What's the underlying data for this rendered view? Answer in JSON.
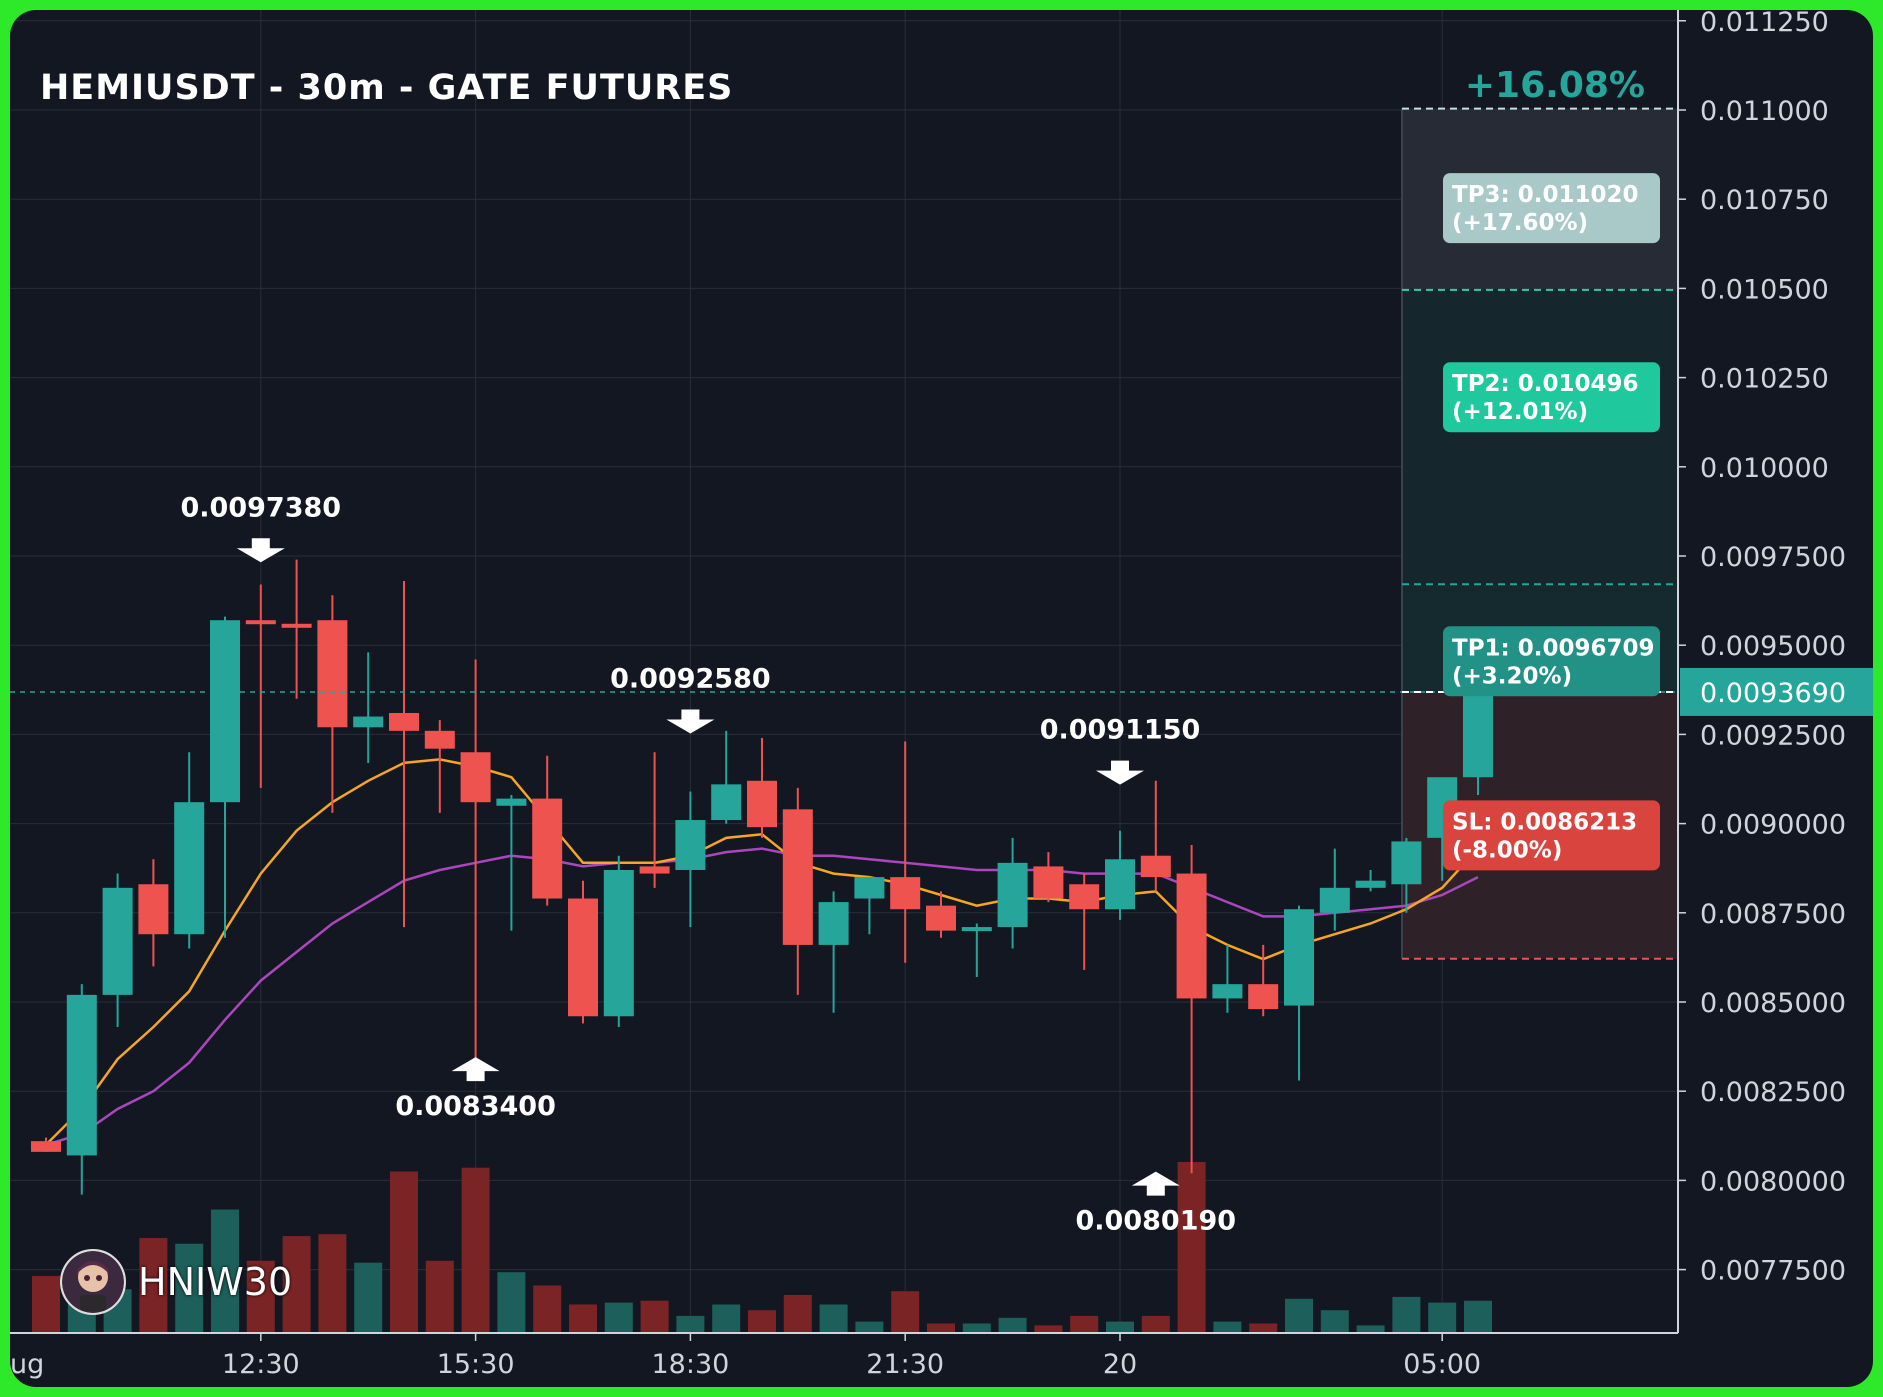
{
  "colors": {
    "background": "#131722",
    "frame": "#2ee82a",
    "grid": "#2a2e39",
    "up": "#26a69a",
    "down": "#ef5350",
    "vol_up": "#1d5f5a",
    "vol_down": "#7a2425",
    "ema_fast": "#f5a623",
    "ema_slow": "#ab47bc",
    "current_price_bg": "#26a69a",
    "tp3_box": "#a9c9c9",
    "tp2_box": "#1fc89d",
    "tp1_box": "#239286",
    "sl_box": "#d9443f",
    "profit_text": "#26a69a"
  },
  "chart_data": {
    "type": "candlestick",
    "title": "HEMIUSDT - 30m - GATE FUTURES",
    "watermark": "HNIW30",
    "price_axis": {
      "ticks": [
        "0.011250",
        "0.011000",
        "0.010750",
        "0.010500",
        "0.010250",
        "0.010000",
        "0.0097500",
        "0.0095000",
        "0.0092500",
        "0.0090000",
        "0.0087500",
        "0.0085000",
        "0.0082500",
        "0.0080000",
        "0.0077500"
      ],
      "tick_values": [
        0.01125,
        0.011,
        0.01075,
        0.0105,
        0.01025,
        0.01,
        0.00975,
        0.0095,
        0.00925,
        0.009,
        0.00875,
        0.0085,
        0.00825,
        0.008,
        0.00775
      ],
      "range": [
        0.00757,
        0.01128
      ]
    },
    "time_axis": {
      "labels": [
        {
          "label": "ug",
          "index": 0
        },
        {
          "label": "12:30",
          "index": 6
        },
        {
          "label": "15:30",
          "index": 12
        },
        {
          "label": "18:30",
          "index": 18
        },
        {
          "label": "21:30",
          "index": 24
        },
        {
          "label": "20",
          "index": 30
        },
        {
          "label": "05:00",
          "index": 39
        }
      ]
    },
    "candles": [
      {
        "o": 0.00811,
        "h": 0.00812,
        "l": 0.00808,
        "c": 0.00808,
        "v": 0.3
      },
      {
        "o": 0.00807,
        "h": 0.00855,
        "l": 0.00796,
        "c": 0.00852,
        "v": 0.22
      },
      {
        "o": 0.00852,
        "h": 0.00886,
        "l": 0.00843,
        "c": 0.00882,
        "v": 0.23
      },
      {
        "o": 0.00883,
        "h": 0.0089,
        "l": 0.0086,
        "c": 0.00869,
        "v": 0.5
      },
      {
        "o": 0.00869,
        "h": 0.0092,
        "l": 0.00865,
        "c": 0.00906,
        "v": 0.47
      },
      {
        "o": 0.00906,
        "h": 0.00958,
        "l": 0.00868,
        "c": 0.00957,
        "v": 0.65
      },
      {
        "o": 0.00957,
        "h": 0.00967,
        "l": 0.0091,
        "c": 0.00956,
        "v": 0.38
      },
      {
        "o": 0.00956,
        "h": 0.00974,
        "l": 0.00935,
        "c": 0.00955,
        "v": 0.51
      },
      {
        "o": 0.00957,
        "h": 0.00964,
        "l": 0.00903,
        "c": 0.00927,
        "v": 0.52
      },
      {
        "o": 0.00927,
        "h": 0.00948,
        "l": 0.00917,
        "c": 0.0093,
        "v": 0.37
      },
      {
        "o": 0.00931,
        "h": 0.00968,
        "l": 0.00871,
        "c": 0.00926,
        "v": 0.85
      },
      {
        "o": 0.00926,
        "h": 0.00929,
        "l": 0.00903,
        "c": 0.00921,
        "v": 0.38
      },
      {
        "o": 0.0092,
        "h": 0.00946,
        "l": 0.00834,
        "c": 0.00906,
        "v": 0.87
      },
      {
        "o": 0.00905,
        "h": 0.00908,
        "l": 0.0087,
        "c": 0.00907,
        "v": 0.32
      },
      {
        "o": 0.00907,
        "h": 0.00919,
        "l": 0.00877,
        "c": 0.00879,
        "v": 0.25
      },
      {
        "o": 0.00879,
        "h": 0.00884,
        "l": 0.00844,
        "c": 0.00846,
        "v": 0.15
      },
      {
        "o": 0.00846,
        "h": 0.00891,
        "l": 0.00843,
        "c": 0.00887,
        "v": 0.16
      },
      {
        "o": 0.00888,
        "h": 0.0092,
        "l": 0.00882,
        "c": 0.00886,
        "v": 0.17
      },
      {
        "o": 0.00887,
        "h": 0.00909,
        "l": 0.00871,
        "c": 0.00901,
        "v": 0.09
      },
      {
        "o": 0.00901,
        "h": 0.00926,
        "l": 0.009,
        "c": 0.00911,
        "v": 0.15
      },
      {
        "o": 0.00912,
        "h": 0.00924,
        "l": 0.00896,
        "c": 0.00899,
        "v": 0.12
      },
      {
        "o": 0.00904,
        "h": 0.0091,
        "l": 0.00852,
        "c": 0.00866,
        "v": 0.2
      },
      {
        "o": 0.00866,
        "h": 0.00881,
        "l": 0.00847,
        "c": 0.00878,
        "v": 0.15
      },
      {
        "o": 0.00879,
        "h": 0.00885,
        "l": 0.00869,
        "c": 0.00885,
        "v": 0.06
      },
      {
        "o": 0.00885,
        "h": 0.00923,
        "l": 0.00861,
        "c": 0.00876,
        "v": 0.22
      },
      {
        "o": 0.00877,
        "h": 0.00881,
        "l": 0.00868,
        "c": 0.0087,
        "v": 0.05
      },
      {
        "o": 0.00871,
        "h": 0.00872,
        "l": 0.00857,
        "c": 0.00871,
        "v": 0.05
      },
      {
        "o": 0.00871,
        "h": 0.00896,
        "l": 0.00865,
        "c": 0.00889,
        "v": 0.08
      },
      {
        "o": 0.00888,
        "h": 0.00892,
        "l": 0.00878,
        "c": 0.00879,
        "v": 0.04
      },
      {
        "o": 0.00883,
        "h": 0.00886,
        "l": 0.00859,
        "c": 0.00876,
        "v": 0.09
      },
      {
        "o": 0.00876,
        "h": 0.00898,
        "l": 0.00873,
        "c": 0.0089,
        "v": 0.06
      },
      {
        "o": 0.00891,
        "h": 0.00912,
        "l": 0.00881,
        "c": 0.00885,
        "v": 0.09
      },
      {
        "o": 0.00886,
        "h": 0.00894,
        "l": 0.00802,
        "c": 0.00851,
        "v": 0.9
      },
      {
        "o": 0.00851,
        "h": 0.00866,
        "l": 0.00847,
        "c": 0.00855,
        "v": 0.06
      },
      {
        "o": 0.00855,
        "h": 0.00866,
        "l": 0.00846,
        "c": 0.00848,
        "v": 0.05
      },
      {
        "o": 0.00849,
        "h": 0.00877,
        "l": 0.00828,
        "c": 0.00876,
        "v": 0.18
      },
      {
        "o": 0.00875,
        "h": 0.00893,
        "l": 0.0087,
        "c": 0.00882,
        "v": 0.12
      },
      {
        "o": 0.00882,
        "h": 0.00887,
        "l": 0.00881,
        "c": 0.00884,
        "v": 0.04
      },
      {
        "o": 0.00883,
        "h": 0.00896,
        "l": 0.00875,
        "c": 0.00895,
        "v": 0.19
      },
      {
        "o": 0.00896,
        "h": 0.00912,
        "l": 0.00884,
        "c": 0.00913,
        "v": 0.16
      },
      {
        "o": 0.00913,
        "h": 0.00947,
        "l": 0.00908,
        "c": 0.00937,
        "v": 0.17
      }
    ],
    "ema_fast": [
      0.0081,
      0.0082,
      0.00834,
      0.00843,
      0.00853,
      0.0087,
      0.00886,
      0.00898,
      0.00906,
      0.00912,
      0.00917,
      0.00918,
      0.00916,
      0.00913,
      0.00901,
      0.00889,
      0.00889,
      0.00889,
      0.00891,
      0.00896,
      0.00897,
      0.00889,
      0.00886,
      0.00885,
      0.00883,
      0.0088,
      0.00877,
      0.00879,
      0.00879,
      0.00878,
      0.0088,
      0.00881,
      0.00871,
      0.00866,
      0.00862,
      0.00866,
      0.00869,
      0.00872,
      0.00876,
      0.00882,
      0.00893
    ],
    "ema_slow": [
      0.0081,
      0.00813,
      0.0082,
      0.00825,
      0.00833,
      0.00845,
      0.00856,
      0.00864,
      0.00872,
      0.00878,
      0.00884,
      0.00887,
      0.00889,
      0.00891,
      0.0089,
      0.00888,
      0.00889,
      0.00889,
      0.0089,
      0.00892,
      0.00893,
      0.00891,
      0.00891,
      0.0089,
      0.00889,
      0.00888,
      0.00887,
      0.00887,
      0.00887,
      0.00886,
      0.00886,
      0.00886,
      0.00882,
      0.00878,
      0.00874,
      0.00874,
      0.00875,
      0.00876,
      0.00877,
      0.0088,
      0.00885
    ],
    "markers": [
      {
        "type": "high",
        "index": 6,
        "price": 0.009738,
        "label": "0.0097380"
      },
      {
        "type": "low",
        "index": 12,
        "price": 0.00834,
        "label": "0.0083400"
      },
      {
        "type": "high",
        "index": 18,
        "price": 0.009258,
        "label": "0.0092580"
      },
      {
        "type": "high",
        "index": 30,
        "price": 0.009115,
        "label": "0.0091150"
      },
      {
        "type": "low",
        "index": 31,
        "price": 0.008019,
        "label": "0.0080190"
      }
    ],
    "current_price": {
      "value": 0.009369,
      "label": "0.0093690"
    },
    "targets": [
      {
        "name": "TP3",
        "price": 0.01102,
        "text": "TP3: 0.011020",
        "pct": "(+17.60%)"
      },
      {
        "name": "TP2",
        "price": 0.010496,
        "text": "TP2: 0.010496",
        "pct": "(+12.01%)"
      },
      {
        "name": "TP1",
        "price": 0.0096709,
        "text": "TP1: 0.0096709",
        "pct": "(+3.20%)"
      }
    ],
    "stop_loss": {
      "price": 0.0086213,
      "text": "SL: 0.0086213",
      "pct": "(-8.00%)"
    },
    "max_profit_label": "+16.08%",
    "max_profit_price": 0.011004
  }
}
